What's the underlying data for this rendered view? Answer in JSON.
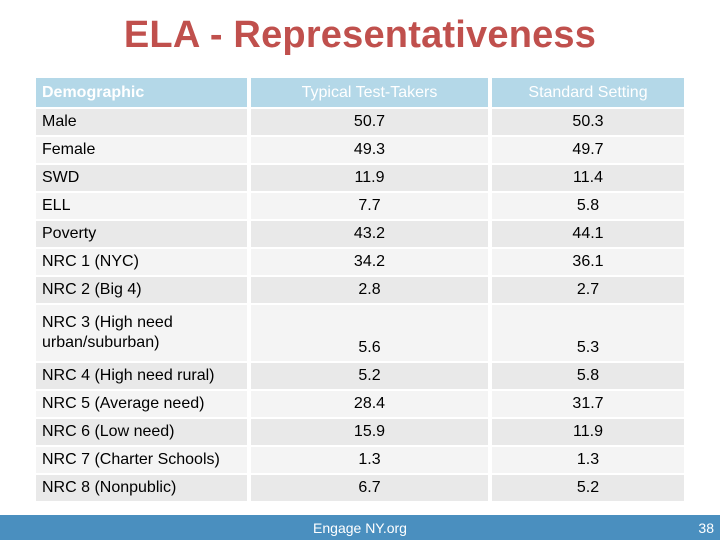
{
  "slide": {
    "title": "ELA - Representativeness",
    "footer": "Engage NY.org",
    "page_number": "38"
  },
  "table": {
    "headers": [
      "Demographic",
      "Typical Test-Takers",
      "Standard Setting"
    ],
    "rows": [
      {
        "label": "Male",
        "typical": "50.7",
        "standard": "50.3"
      },
      {
        "label": "Female",
        "typical": "49.3",
        "standard": "49.7"
      },
      {
        "label": "SWD",
        "typical": "11.9",
        "standard": "11.4"
      },
      {
        "label": "ELL",
        "typical": "7.7",
        "standard": "5.8"
      },
      {
        "label": "Poverty",
        "typical": "43.2",
        "standard": "44.1"
      },
      {
        "label": "NRC 1 (NYC)",
        "typical": "34.2",
        "standard": "36.1"
      },
      {
        "label": "NRC 2 (Big 4)",
        "typical": "2.8",
        "standard": "2.7"
      },
      {
        "label": "NRC 3 (High need urban/suburban)",
        "typical": "5.6",
        "standard": "5.3"
      },
      {
        "label": "NRC 4 (High need rural)",
        "typical": "5.2",
        "standard": "5.8"
      },
      {
        "label": "NRC 5 (Average need)",
        "typical": "28.4",
        "standard": "31.7"
      },
      {
        "label": "NRC 6 (Low need)",
        "typical": "15.9",
        "standard": "11.9"
      },
      {
        "label": "NRC 7 (Charter Schools)",
        "typical": "1.3",
        "standard": "1.3"
      },
      {
        "label": "NRC 8 (Nonpublic)",
        "typical": "6.7",
        "standard": "5.2"
      }
    ]
  },
  "colors": {
    "title": "#c0504d",
    "header_bg": "#b4d8e8",
    "row_odd": "#e9e9e9",
    "row_even": "#f4f4f4",
    "footer_bar": "#4a8fbf"
  }
}
